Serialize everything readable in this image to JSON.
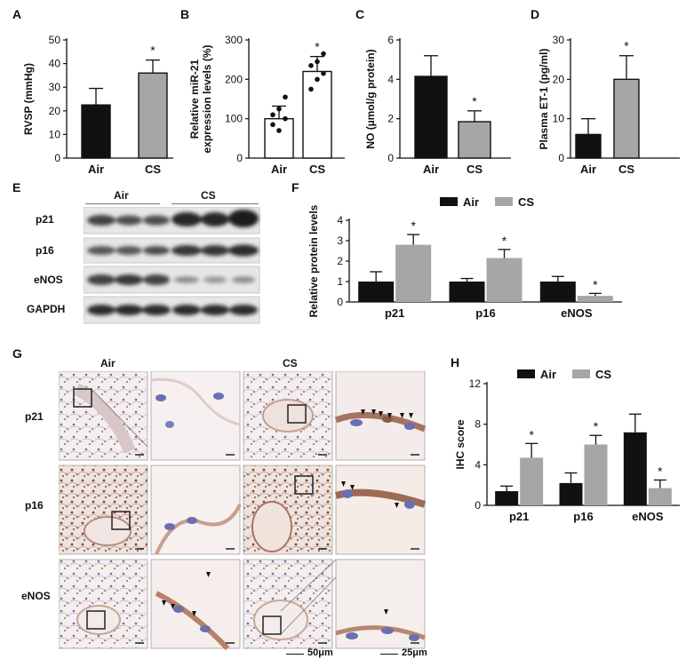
{
  "panels": {
    "A": "A",
    "B": "B",
    "C": "C",
    "D": "D",
    "E": "E",
    "F": "F",
    "G": "G",
    "H": "H"
  },
  "chart_data": [
    {
      "id": "A",
      "type": "bar",
      "categories": [
        "Air",
        "CS"
      ],
      "values": [
        22.5,
        36
      ],
      "errors": [
        7,
        5.5
      ],
      "ylabel": "RVSP (mmHg)",
      "ylim": [
        0,
        50
      ],
      "yticks": [
        0,
        10,
        20,
        30,
        40,
        50
      ],
      "significance": [
        "",
        "*"
      ],
      "colors": [
        "#111111",
        "#a6a6a6"
      ]
    },
    {
      "id": "B",
      "type": "bar",
      "categories": [
        "Air",
        "CS"
      ],
      "values": [
        100,
        220
      ],
      "errors": [
        32,
        38
      ],
      "ylabel": "Relative miR-21 expression levels (%)",
      "ylabel_lines": [
        "Relative miR-21",
        "expression levels (%)"
      ],
      "ylim": [
        0,
        300
      ],
      "yticks": [
        0,
        100,
        200,
        300
      ],
      "significance": [
        "",
        "*"
      ],
      "colors": [
        "#ffffff",
        "#ffffff"
      ],
      "points": [
        [
          85,
          70,
          100,
          110,
          125,
          155
        ],
        [
          175,
          200,
          215,
          235,
          245,
          265
        ]
      ]
    },
    {
      "id": "C",
      "type": "bar",
      "categories": [
        "Air",
        "CS"
      ],
      "values": [
        4.15,
        1.85
      ],
      "errors": [
        1.05,
        0.55
      ],
      "ylabel": "NO (µmol/g protein)",
      "ylim": [
        0,
        6
      ],
      "yticks": [
        0,
        2,
        4,
        6
      ],
      "significance": [
        "",
        "*"
      ],
      "colors": [
        "#111111",
        "#a6a6a6"
      ]
    },
    {
      "id": "D",
      "type": "bar",
      "categories": [
        "Air",
        "CS"
      ],
      "values": [
        6,
        20
      ],
      "errors": [
        4,
        6
      ],
      "ylabel": "Plasma ET-1 (pg/ml)",
      "ylim": [
        0,
        30
      ],
      "yticks": [
        0,
        10,
        20,
        30
      ],
      "significance": [
        "",
        "*"
      ],
      "colors": [
        "#111111",
        "#a6a6a6"
      ]
    },
    {
      "id": "F",
      "type": "bar",
      "categories": [
        "p21",
        "p16",
        "eNOS"
      ],
      "series": [
        {
          "name": "Air",
          "values": [
            1.0,
            1.0,
            1.0
          ],
          "errors": [
            0.48,
            0.15,
            0.25
          ]
        },
        {
          "name": "CS",
          "values": [
            2.8,
            2.15,
            0.3
          ],
          "errors": [
            0.5,
            0.42,
            0.12
          ]
        }
      ],
      "significance": [
        [
          "",
          "*"
        ],
        [
          "",
          "*"
        ],
        [
          "",
          "*"
        ]
      ],
      "ylabel": "Relative protein levels",
      "ylim": [
        0,
        4
      ],
      "yticks": [
        0,
        1,
        2,
        3,
        4
      ],
      "legend": "top",
      "colors": [
        "#111111",
        "#a6a6a6"
      ]
    },
    {
      "id": "H",
      "type": "bar",
      "categories": [
        "p21",
        "p16",
        "eNOS"
      ],
      "series": [
        {
          "name": "Air",
          "values": [
            1.4,
            2.2,
            7.2
          ],
          "errors": [
            0.5,
            1.0,
            1.8
          ]
        },
        {
          "name": "CS",
          "values": [
            4.7,
            6.0,
            1.7
          ],
          "errors": [
            1.4,
            0.9,
            0.8
          ]
        }
      ],
      "significance": [
        [
          "",
          "*"
        ],
        [
          "",
          "*"
        ],
        [
          "",
          "*"
        ]
      ],
      "ylabel": "IHC score",
      "ylim": [
        0,
        12
      ],
      "yticks": [
        0,
        4,
        8,
        12
      ],
      "legend": "top",
      "colors": [
        "#111111",
        "#a6a6a6"
      ]
    }
  ],
  "blot": {
    "groups": [
      "Air",
      "CS"
    ],
    "rows": [
      "p21",
      "p16",
      "eNOS",
      "GAPDH"
    ]
  },
  "histology": {
    "columns": [
      "Air",
      "CS"
    ],
    "rows": [
      "p21",
      "p16",
      "eNOS"
    ],
    "scale_left": "50μm",
    "scale_right": "25μm"
  }
}
